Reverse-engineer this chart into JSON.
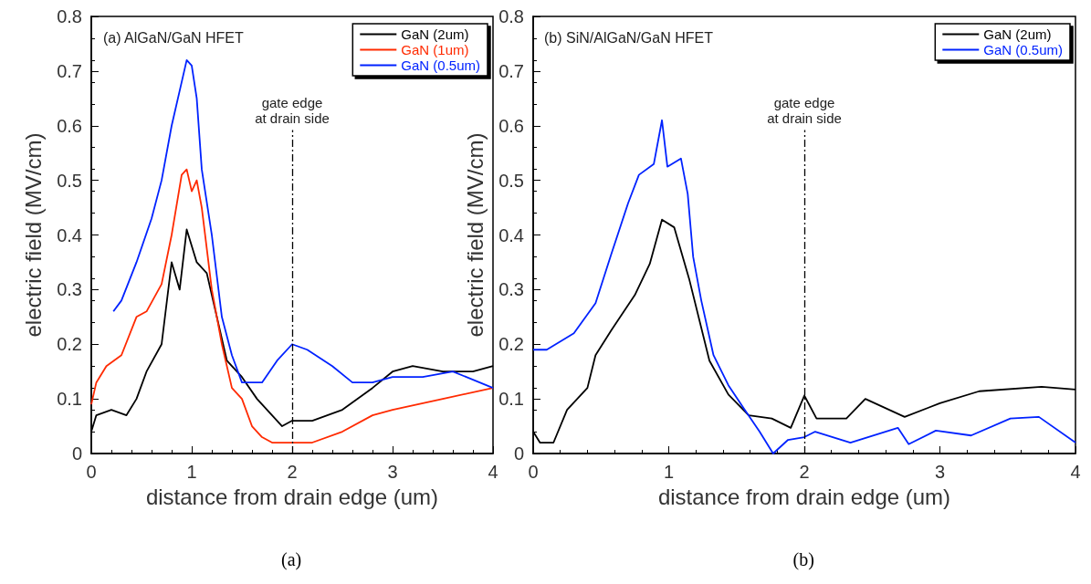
{
  "chart_data": [
    {
      "type": "line",
      "title": "(a) AlGaN/GaN HFET",
      "xlabel": "distance from drain edge (um)",
      "ylabel": "electric field (MV/cm)",
      "xlim": [
        0,
        4
      ],
      "xticks": [
        0,
        1,
        2,
        3,
        4
      ],
      "ylim": [
        0,
        0.8
      ],
      "yticks": [
        0,
        0.1,
        0.2,
        0.3,
        0.4,
        0.5,
        0.6,
        0.7,
        0.8
      ],
      "grid": false,
      "legend": "top right",
      "marker": "none",
      "line_style": "solid",
      "annotations": [
        "(a)"
      ],
      "ref_lines": [
        {
          "axis": "x",
          "value": 2,
          "label": "gate edge\nat drain side",
          "color": "#000000",
          "line_style": "dashed"
        }
      ],
      "series": [
        {
          "name": "GaN (2um)",
          "color": "#000000",
          "x": [
            0,
            0.05,
            0.2,
            0.35,
            0.45,
            0.55,
            0.7,
            0.8,
            0.88,
            0.95,
            1.05,
            1.15,
            1.25,
            1.35,
            1.5,
            1.65,
            1.8,
            1.9,
            2.0,
            2.2,
            2.5,
            2.8,
            3.0,
            3.2,
            3.5,
            3.8,
            4.0
          ],
          "values": [
            0.04,
            0.07,
            0.08,
            0.07,
            0.1,
            0.15,
            0.2,
            0.35,
            0.3,
            0.41,
            0.35,
            0.33,
            0.25,
            0.17,
            0.14,
            0.1,
            0.07,
            0.05,
            0.06,
            0.06,
            0.08,
            0.12,
            0.15,
            0.16,
            0.15,
            0.15,
            0.16
          ]
        },
        {
          "name": "GaN (1um)",
          "color": "#ff2a00",
          "x": [
            0,
            0.05,
            0.15,
            0.3,
            0.45,
            0.55,
            0.7,
            0.8,
            0.9,
            0.95,
            1.0,
            1.05,
            1.1,
            1.2,
            1.3,
            1.4,
            1.5,
            1.6,
            1.7,
            1.8,
            2.0,
            2.2,
            2.5,
            2.8,
            3.0,
            3.5,
            4.0
          ],
          "values": [
            0.09,
            0.13,
            0.16,
            0.18,
            0.25,
            0.26,
            0.31,
            0.4,
            0.51,
            0.52,
            0.48,
            0.5,
            0.45,
            0.3,
            0.2,
            0.12,
            0.1,
            0.05,
            0.03,
            0.02,
            0.02,
            0.02,
            0.04,
            0.07,
            0.08,
            0.1,
            0.12
          ]
        },
        {
          "name": "GaN (0.5um)",
          "color": "#0022ff",
          "x": [
            0.22,
            0.3,
            0.45,
            0.6,
            0.7,
            0.8,
            0.9,
            0.95,
            1.0,
            1.05,
            1.1,
            1.2,
            1.3,
            1.4,
            1.5,
            1.7,
            1.85,
            2.0,
            2.15,
            2.4,
            2.6,
            2.8,
            3.0,
            3.3,
            3.6,
            4.0
          ],
          "values": [
            0.26,
            0.28,
            0.35,
            0.43,
            0.5,
            0.6,
            0.68,
            0.72,
            0.71,
            0.65,
            0.52,
            0.4,
            0.25,
            0.18,
            0.13,
            0.13,
            0.17,
            0.2,
            0.19,
            0.16,
            0.13,
            0.13,
            0.14,
            0.14,
            0.15,
            0.12
          ]
        }
      ]
    },
    {
      "type": "line",
      "title": "(b) SiN/AlGaN/GaN HFET",
      "xlabel": "distance from drain edge (um)",
      "ylabel": "electric field (MV/cm)",
      "xlim": [
        0,
        4
      ],
      "xticks": [
        0,
        1,
        2,
        3,
        4
      ],
      "ylim": [
        0,
        0.8
      ],
      "yticks": [
        0,
        0.1,
        0.2,
        0.3,
        0.4,
        0.5,
        0.6,
        0.7,
        0.8
      ],
      "grid": false,
      "legend": "top right",
      "marker": "none",
      "line_style": "solid",
      "annotations": [
        "(b)"
      ],
      "ref_lines": [
        {
          "axis": "x",
          "value": 2,
          "label": "gate edge\nat drain side",
          "color": "#000000",
          "line_style": "dashed"
        }
      ],
      "series": [
        {
          "name": "GaN (2um)",
          "color": "#000000",
          "x": [
            0,
            0.05,
            0.15,
            0.25,
            0.4,
            0.46,
            0.575,
            0.75,
            0.86,
            0.95,
            1.04,
            1.15,
            1.3,
            1.44,
            1.59,
            1.76,
            1.9,
            2.0,
            2.09,
            2.31,
            2.45,
            2.74,
            3.0,
            3.29,
            3.75,
            4.0
          ],
          "values": [
            0.04,
            0.02,
            0.02,
            0.08,
            0.12,
            0.18,
            0.225,
            0.29,
            0.347,
            0.428,
            0.414,
            0.32,
            0.17,
            0.108,
            0.07,
            0.064,
            0.047,
            0.106,
            0.064,
            0.064,
            0.1,
            0.067,
            0.092,
            0.114,
            0.122,
            0.117
          ]
        },
        {
          "name": "GaN (0.5um)",
          "color": "#0022ff",
          "x": [
            0,
            0.1,
            0.3,
            0.46,
            0.575,
            0.7,
            0.78,
            0.89,
            0.95,
            0.99,
            1.09,
            1.14,
            1.18,
            1.24,
            1.33,
            1.44,
            1.56,
            1.67,
            1.77,
            1.88,
            2.0,
            2.08,
            2.34,
            2.69,
            2.77,
            2.97,
            3.23,
            3.52,
            3.73,
            4.0
          ],
          "values": [
            0.19,
            0.19,
            0.22,
            0.275,
            0.364,
            0.458,
            0.51,
            0.53,
            0.61,
            0.525,
            0.54,
            0.475,
            0.36,
            0.28,
            0.18,
            0.125,
            0.08,
            0.04,
            0.0,
            0.025,
            0.03,
            0.04,
            0.02,
            0.047,
            0.017,
            0.042,
            0.033,
            0.064,
            0.067,
            0.02
          ]
        }
      ]
    }
  ]
}
